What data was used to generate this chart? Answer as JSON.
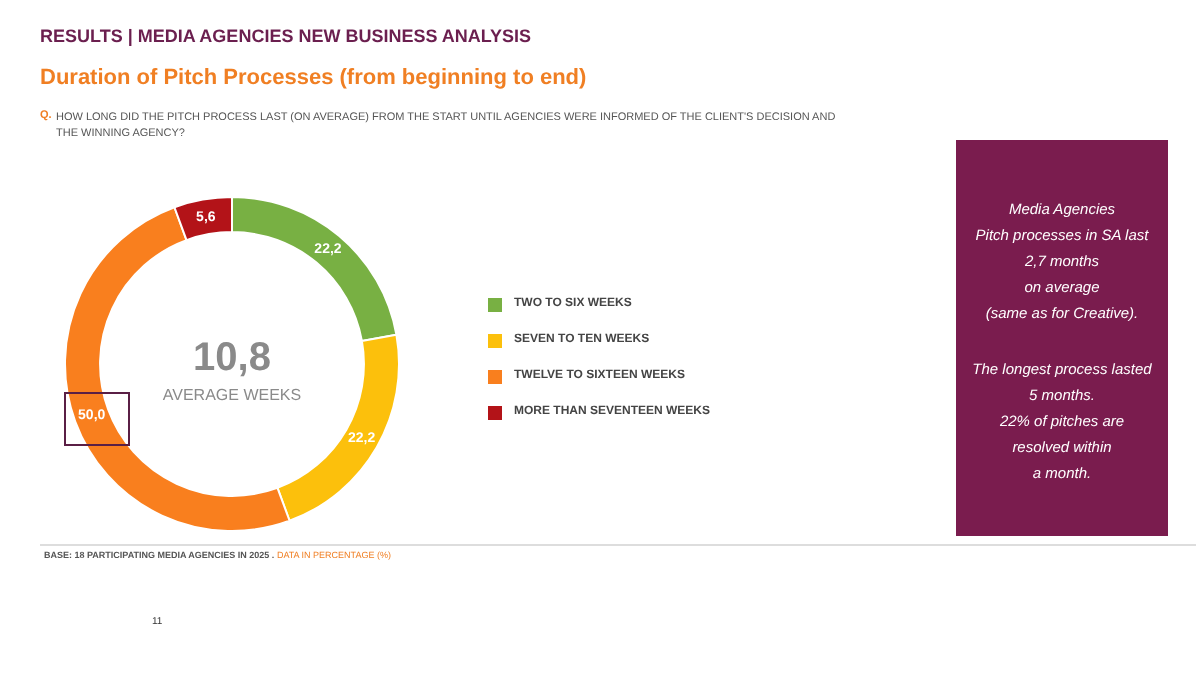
{
  "chart_data": {
    "type": "donut",
    "title": "RESULTS | MEDIA AGENCIES NEW BUSINESS ANALYSIS",
    "subtitle": "Duration of Pitch Processes (from beginning  to end)",
    "categories": [
      "TWO TO SIX WEEKS",
      "SEVEN TO TEN WEEKS",
      "TWELVE TO SIXTEEN WEEKS",
      "MORE THAN SEVENTEEN WEEKS"
    ],
    "values": [
      22.2,
      22.2,
      50.0,
      5.6
    ],
    "colors": [
      "#78b043",
      "#fcc00c",
      "#f97f1e",
      "#b31318"
    ],
    "value_labels": [
      "22,2",
      "22,2",
      "50,0",
      "5,6"
    ],
    "legend": "right",
    "annotations": [
      "Q.",
      "HOW LONG DID THE PITCH PROCESS LAST (ON AVERAGE) FROM THE START UNTIL AGENCIES WERE INFORMED OF THE CLIENT'S DECISION AND THE WINNING AGENCY?",
      "10,8",
      "AVERAGE WEEKS",
      "Media Agencies\nPitch processes in SA last\n2,7 months\non average\n(same as for Creative).",
      "The longest process lasted\n5 months.\n22% of pitches are\nresolved within\na month.",
      "BASE: 18 PARTICIPATING MEDIA AGENCIES IN 2025 .",
      "DATA IN PERCENTAGE (%)",
      "11"
    ]
  }
}
